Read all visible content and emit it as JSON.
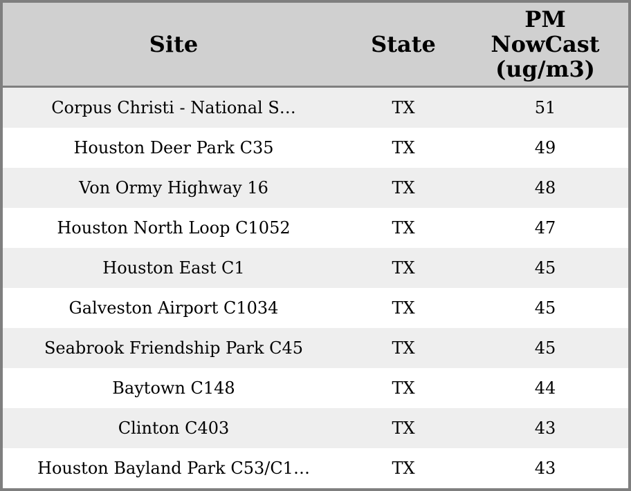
{
  "table": {
    "columns": [
      {
        "key": "site",
        "label": "Site"
      },
      {
        "key": "state",
        "label": "State"
      },
      {
        "key": "pm_nowcast",
        "label": "PM NowCast (ug/m3)"
      }
    ],
    "rows": [
      {
        "site": "Corpus Christi - National S…",
        "state": "TX",
        "pm": "51"
      },
      {
        "site": "Houston Deer Park C35",
        "state": "TX",
        "pm": "49"
      },
      {
        "site": "Von Ormy Highway 16",
        "state": "TX",
        "pm": "48"
      },
      {
        "site": "Houston North Loop C1052",
        "state": "TX",
        "pm": "47"
      },
      {
        "site": "Houston East C1",
        "state": "TX",
        "pm": "45"
      },
      {
        "site": "Galveston Airport C1034",
        "state": "TX",
        "pm": "45"
      },
      {
        "site": "Seabrook Friendship Park C45",
        "state": "TX",
        "pm": "45"
      },
      {
        "site": "Baytown C148",
        "state": "TX",
        "pm": "44"
      },
      {
        "site": "Clinton C403",
        "state": "TX",
        "pm": "43"
      },
      {
        "site": "Houston Bayland Park C53/C1…",
        "state": "TX",
        "pm": "43"
      }
    ],
    "colors": {
      "header_bg": "#d0d0d0",
      "row_alt_bg": "#eeeeee",
      "row_bg": "#ffffff",
      "border": "#7f7f7f",
      "text": "#000000"
    }
  }
}
